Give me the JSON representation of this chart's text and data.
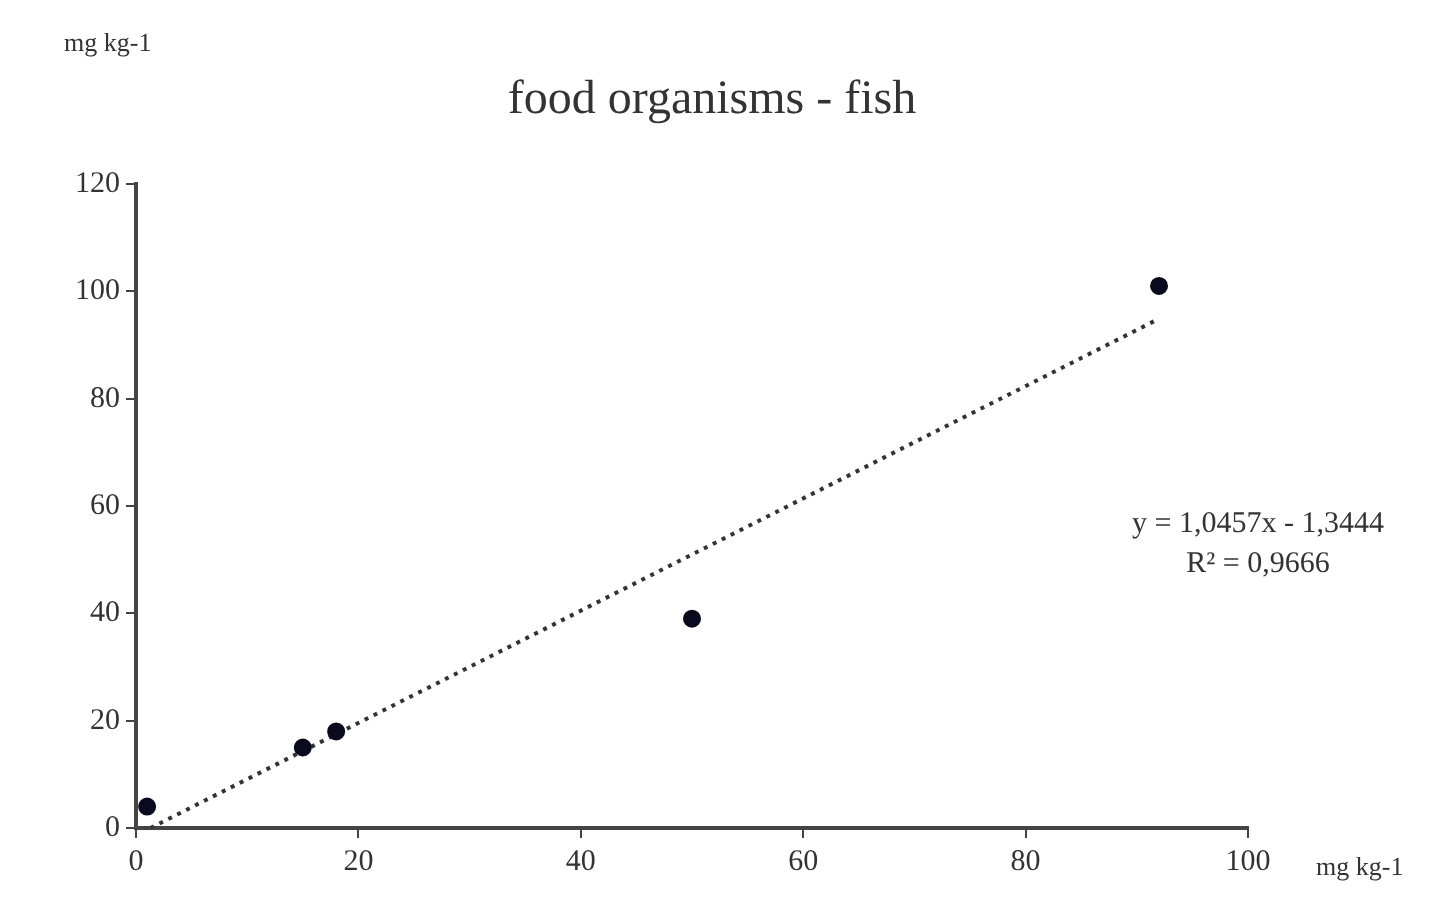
{
  "chart_data": {
    "type": "scatter",
    "title": "food organisms - fish",
    "xlabel": "mg kg-1",
    "ylabel": "mg kg-1",
    "series": [
      {
        "color": "#0a0a1e",
        "marker": "circle",
        "x": [
          1,
          15,
          18,
          50,
          92
        ],
        "values": [
          4,
          15,
          18,
          39,
          101
        ]
      },
      {
        "type": "line",
        "color": "#333333",
        "line_style": "dotted",
        "marker": "none",
        "x": [
          1.3,
          92
        ],
        "values": [
          0,
          94.9
        ]
      }
    ],
    "xlim": [
      0,
      100
    ],
    "xticks": [
      0,
      20,
      40,
      60,
      80,
      100
    ],
    "ylim": [
      0,
      120
    ],
    "yticks": [
      0,
      20,
      40,
      60,
      80,
      100,
      120
    ],
    "grid": false,
    "legend": false,
    "annotations": [
      "y = 1,0457x - 1,3444",
      "R² = 0,9666"
    ]
  }
}
